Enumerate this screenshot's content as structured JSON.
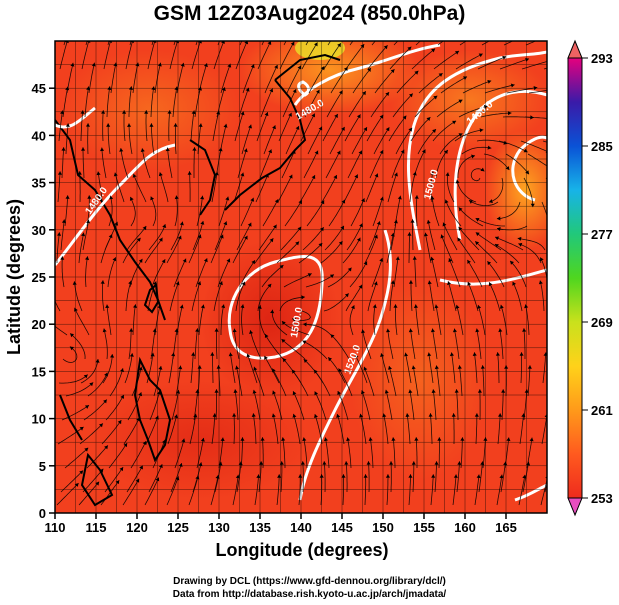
{
  "title": "GSM 12Z03Aug2024 (850.0hPa)",
  "x_axis": {
    "label": "Longitude (degrees)",
    "ticks": [
      "110",
      "115",
      "120",
      "125",
      "130",
      "135",
      "140",
      "145",
      "150",
      "155",
      "160",
      "165"
    ],
    "range": [
      110,
      170
    ]
  },
  "y_axis": {
    "label": "Latitude  (degrees)",
    "ticks": [
      "0",
      "5",
      "10",
      "15",
      "20",
      "25",
      "30",
      "35",
      "40",
      "45"
    ],
    "range": [
      0,
      50
    ]
  },
  "colorbar": {
    "ticks": [
      "293",
      "285",
      "277",
      "269",
      "261",
      "253"
    ],
    "range": [
      253,
      293
    ],
    "colors": [
      "#e6007e",
      "#3a1aa8",
      "#0a52d6",
      "#17b3e8",
      "#21c87a",
      "#4fd61f",
      "#c9e11c",
      "#ffd21a",
      "#ff9a1a",
      "#ff5a1f",
      "#ee2b1d"
    ]
  },
  "contour_labels": [
    "1480.0",
    "1480.0",
    "1500.0",
    "1500.0",
    "1460.0",
    "1520.0"
  ],
  "credits": {
    "line1": "Drawing by DCL (https://www.gfd-dennou.org/library/dcl/)",
    "line2": "Data from http://database.rish.kyoto-u.ac.jp/arch/jmadata/"
  },
  "colors": {
    "field_main": "#f2401e",
    "field_warm": "#ff6a22",
    "field_hot": "#e62a14",
    "contour": "#ffffff",
    "streamline": "#000000"
  }
}
